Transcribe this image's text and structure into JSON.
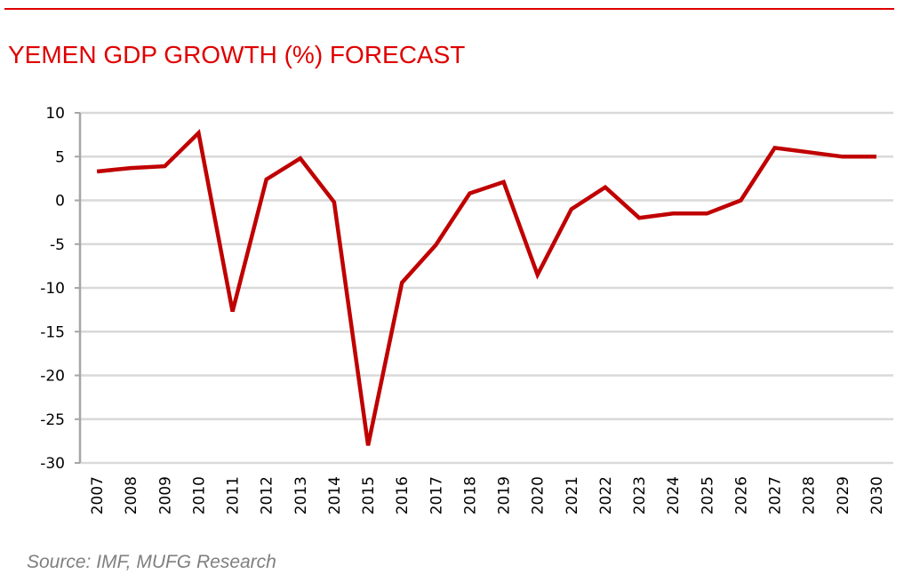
{
  "chart_data": {
    "type": "line",
    "title": "YEMEN GDP GROWTH (%) FORECAST",
    "xlabel": "",
    "ylabel": "",
    "x": [
      "2007",
      "2008",
      "2009",
      "2010",
      "2011",
      "2012",
      "2013",
      "2014",
      "2015",
      "2016",
      "2017",
      "2018",
      "2019",
      "2020",
      "2021",
      "2022",
      "2023",
      "2024",
      "2025",
      "2026",
      "2027",
      "2028",
      "2029",
      "2030"
    ],
    "series": [
      {
        "name": "Yemen GDP growth (%)",
        "color": "#c00000",
        "values": [
          3.3,
          3.7,
          3.9,
          7.7,
          -12.7,
          2.4,
          4.8,
          -0.2,
          -28.0,
          -9.4,
          -5.1,
          0.8,
          2.1,
          -8.5,
          -1.0,
          1.5,
          -2.0,
          -1.5,
          -1.5,
          0.0,
          6.0,
          5.5,
          5.0,
          5.0
        ]
      }
    ],
    "ylim": [
      -30,
      10
    ],
    "yticks": [
      10,
      5,
      0,
      -5,
      -10,
      -15,
      -20,
      -25,
      -30
    ],
    "grid": true,
    "legend": "none"
  },
  "header": {
    "title": "YEMEN GDP GROWTH (%) FORECAST",
    "accent_color": "#e00000"
  },
  "footer": {
    "source": "Source: IMF, MUFG Research"
  }
}
